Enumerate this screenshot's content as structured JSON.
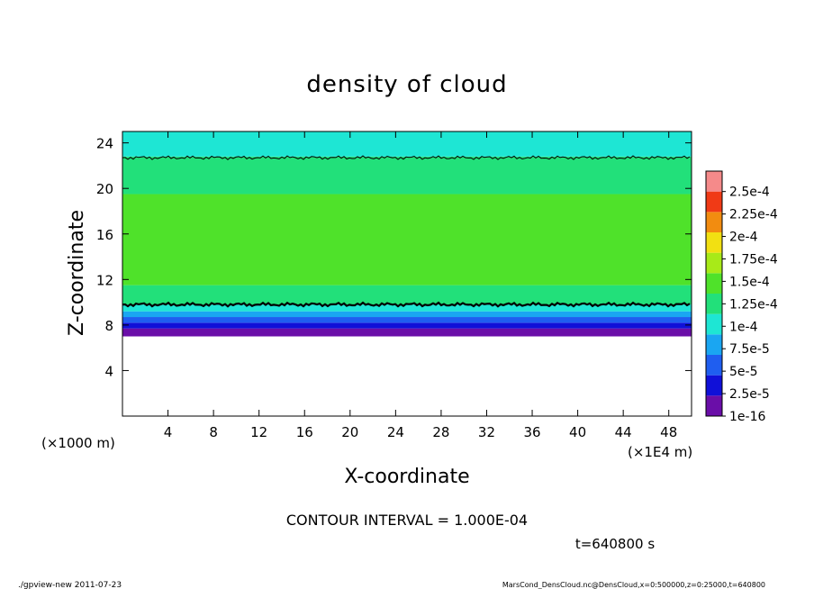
{
  "chart_data": {
    "type": "heatmap",
    "title": "density of cloud",
    "xlabel": "X-coordinate",
    "ylabel": "Z-coordinate",
    "x_unit_left": "(×1000 m)",
    "x_unit_right": "(×1E4 m)",
    "xlim": [
      0,
      50
    ],
    "ylim": [
      0,
      25
    ],
    "x_ticks": [
      4,
      8,
      12,
      16,
      20,
      24,
      28,
      32,
      36,
      40,
      44,
      48
    ],
    "y_ticks": [
      4,
      8,
      12,
      16,
      20,
      24
    ],
    "colorbar": {
      "labels": [
        "1e-16",
        "2.5e-5",
        "5e-5",
        "7.5e-5",
        "1e-4",
        "1.25e-4",
        "1.5e-4",
        "1.75e-4",
        "2e-4",
        "2.25e-4",
        "2.5e-4"
      ],
      "colors": [
        "#6a0ea8",
        "#1010d8",
        "#1f5ef0",
        "#1aa6f2",
        "#1ee6d4",
        "#22e07a",
        "#4fe22a",
        "#a8ea18",
        "#f2e012",
        "#f28c10",
        "#f03a16",
        "#f58a8a"
      ]
    },
    "bands": [
      {
        "z_from": 7.0,
        "z_to": 7.7,
        "color": "#6a0ea8"
      },
      {
        "z_from": 7.7,
        "z_to": 8.2,
        "color": "#1010d8"
      },
      {
        "z_from": 8.2,
        "z_to": 8.7,
        "color": "#1f5ef0"
      },
      {
        "z_from": 8.7,
        "z_to": 9.2,
        "color": "#1aa6f2"
      },
      {
        "z_from": 9.2,
        "z_to": 9.8,
        "color": "#1ee6d4"
      },
      {
        "z_from": 9.8,
        "z_to": 11.5,
        "color": "#22e07a"
      },
      {
        "z_from": 11.5,
        "z_to": 19.5,
        "color": "#4fe22a"
      },
      {
        "z_from": 19.5,
        "z_to": 22.8,
        "color": "#22e07a"
      },
      {
        "z_from": 22.8,
        "z_to": 25.0,
        "color": "#1ee6d4"
      }
    ],
    "contours": [
      {
        "level": 0.0001,
        "z": 9.8
      },
      {
        "level": 0.0001,
        "z": 22.7
      }
    ],
    "grid": false,
    "legend": "right colorbar"
  },
  "annotations": {
    "contour_interval": "CONTOUR INTERVAL = 1.000E-04",
    "time": "t=640800 s"
  },
  "footer": {
    "left": "./gpview-new  2011-07-23",
    "right": "MarsCond_DensCloud.nc@DensCloud,x=0:500000,z=0:25000,t=640800"
  }
}
